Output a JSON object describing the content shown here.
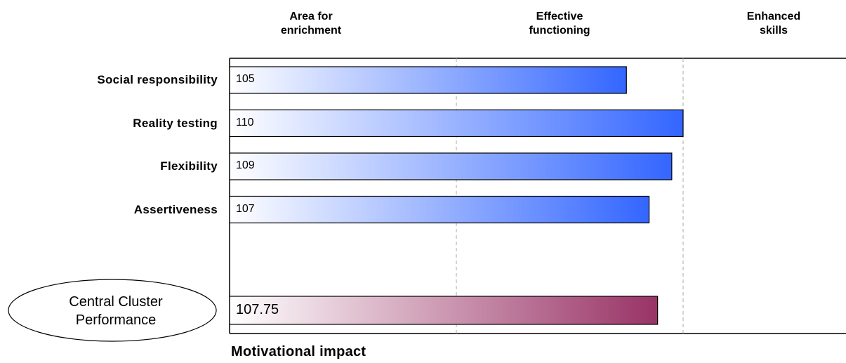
{
  "columns": {
    "area_for_enrichment": "Area for\nenrichment",
    "effective_functioning": "Effective\nfunctioning",
    "enhanced_skills": "Enhanced\nskills"
  },
  "cluster_label": "Central Cluster\nPerformance",
  "footer_title": "Motivational impact",
  "chart_data": {
    "type": "bar",
    "orientation": "horizontal",
    "categories": [
      "Social responsibility",
      "Reality testing",
      "Flexibility",
      "Assertiveness"
    ],
    "values": [
      105,
      110,
      109,
      107
    ],
    "value_labels": [
      "105",
      "110",
      "109",
      "107"
    ],
    "summary": {
      "value": 107.75,
      "label": "107.75"
    },
    "xlim": [
      70,
      130
    ],
    "band_boundaries": [
      90,
      110
    ],
    "grid": "dashed vertical lines at band boundaries",
    "colors": {
      "bar_gradient_start": "#ffffff",
      "bar_gradient_end": "#3366ff",
      "summary_gradient_start": "#ffffff",
      "summary_gradient_end": "#993366",
      "border": "#000000",
      "gridline": "#aaaaaa"
    }
  }
}
